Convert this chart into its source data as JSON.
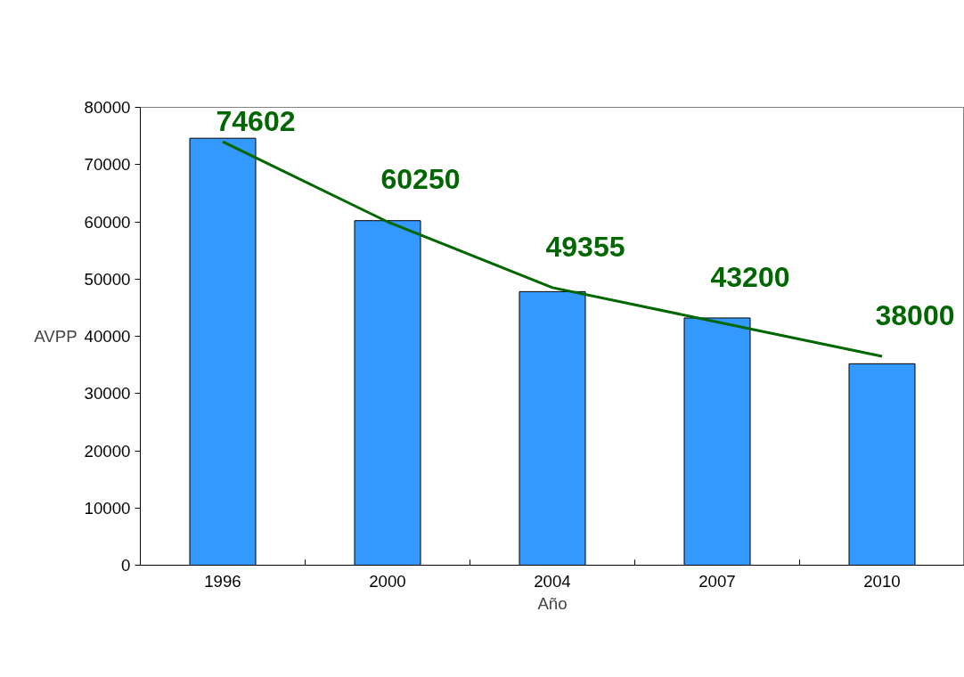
{
  "chart_data": {
    "type": "bar",
    "xlabel": "Año",
    "ylabel": "AVPP",
    "categories": [
      "1996",
      "2000",
      "2004",
      "2007",
      "2010"
    ],
    "values": [
      74600,
      60200,
      47800,
      43200,
      35200
    ],
    "color": "#3399ff",
    "ylim": [
      0,
      80000
    ],
    "yticks": [
      0,
      10000,
      20000,
      30000,
      40000,
      50000,
      60000,
      70000,
      80000
    ],
    "grid": false,
    "series": [
      {
        "type": "line",
        "color": "#006600",
        "values": [
          74000,
          60000,
          48500,
          42500,
          36500
        ]
      }
    ],
    "annotations": [
      "74602",
      "60250",
      "49355",
      "43200",
      "38000"
    ]
  }
}
